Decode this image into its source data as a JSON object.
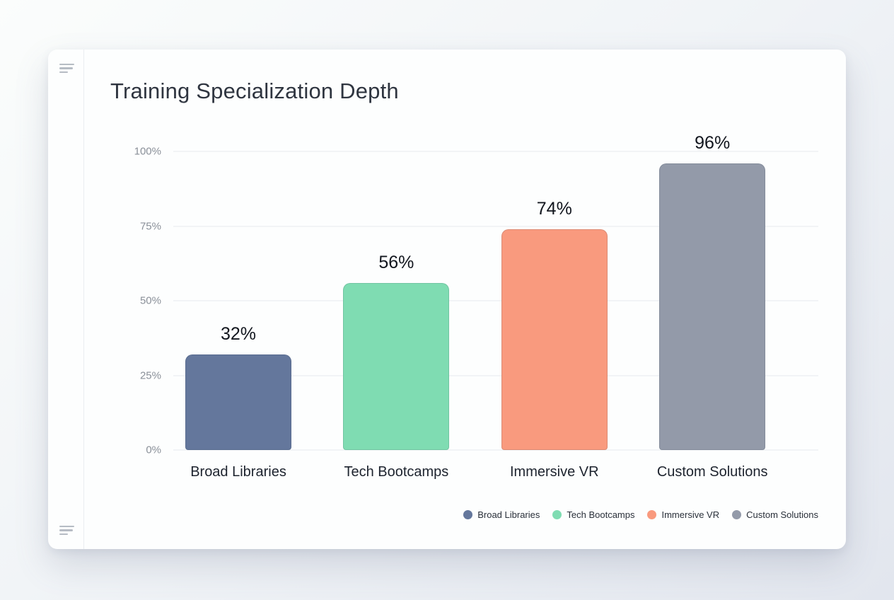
{
  "chart_data": {
    "type": "bar",
    "title": "Training Specialization Depth",
    "categories": [
      "Broad Libraries",
      "Tech Bootcamps",
      "Immersive VR",
      "Custom Solutions"
    ],
    "values": [
      32,
      56,
      74,
      96
    ],
    "value_labels": [
      "32%",
      "56%",
      "74%",
      "96%"
    ],
    "bar_colors": [
      "#64779c",
      "#7fdcb2",
      "#f99a7e",
      "#939aa9"
    ],
    "xlabel": "",
    "ylabel": "",
    "ylim": [
      0,
      100
    ],
    "yticks": [
      "0%",
      "25%",
      "50%",
      "75%",
      "100%"
    ],
    "grid": true,
    "legend_position": "bottom-right",
    "legend": [
      {
        "label": "Broad Libraries",
        "color": "#64779c"
      },
      {
        "label": "Tech Bootcamps",
        "color": "#7fdcb2"
      },
      {
        "label": "Immersive VR",
        "color": "#f99a7e"
      },
      {
        "label": "Custom Solutions",
        "color": "#939aa9"
      }
    ]
  },
  "icons": {
    "top_rail_icon": "menu-lines-icon",
    "bottom_rail_icon": "menu-lines-icon"
  }
}
